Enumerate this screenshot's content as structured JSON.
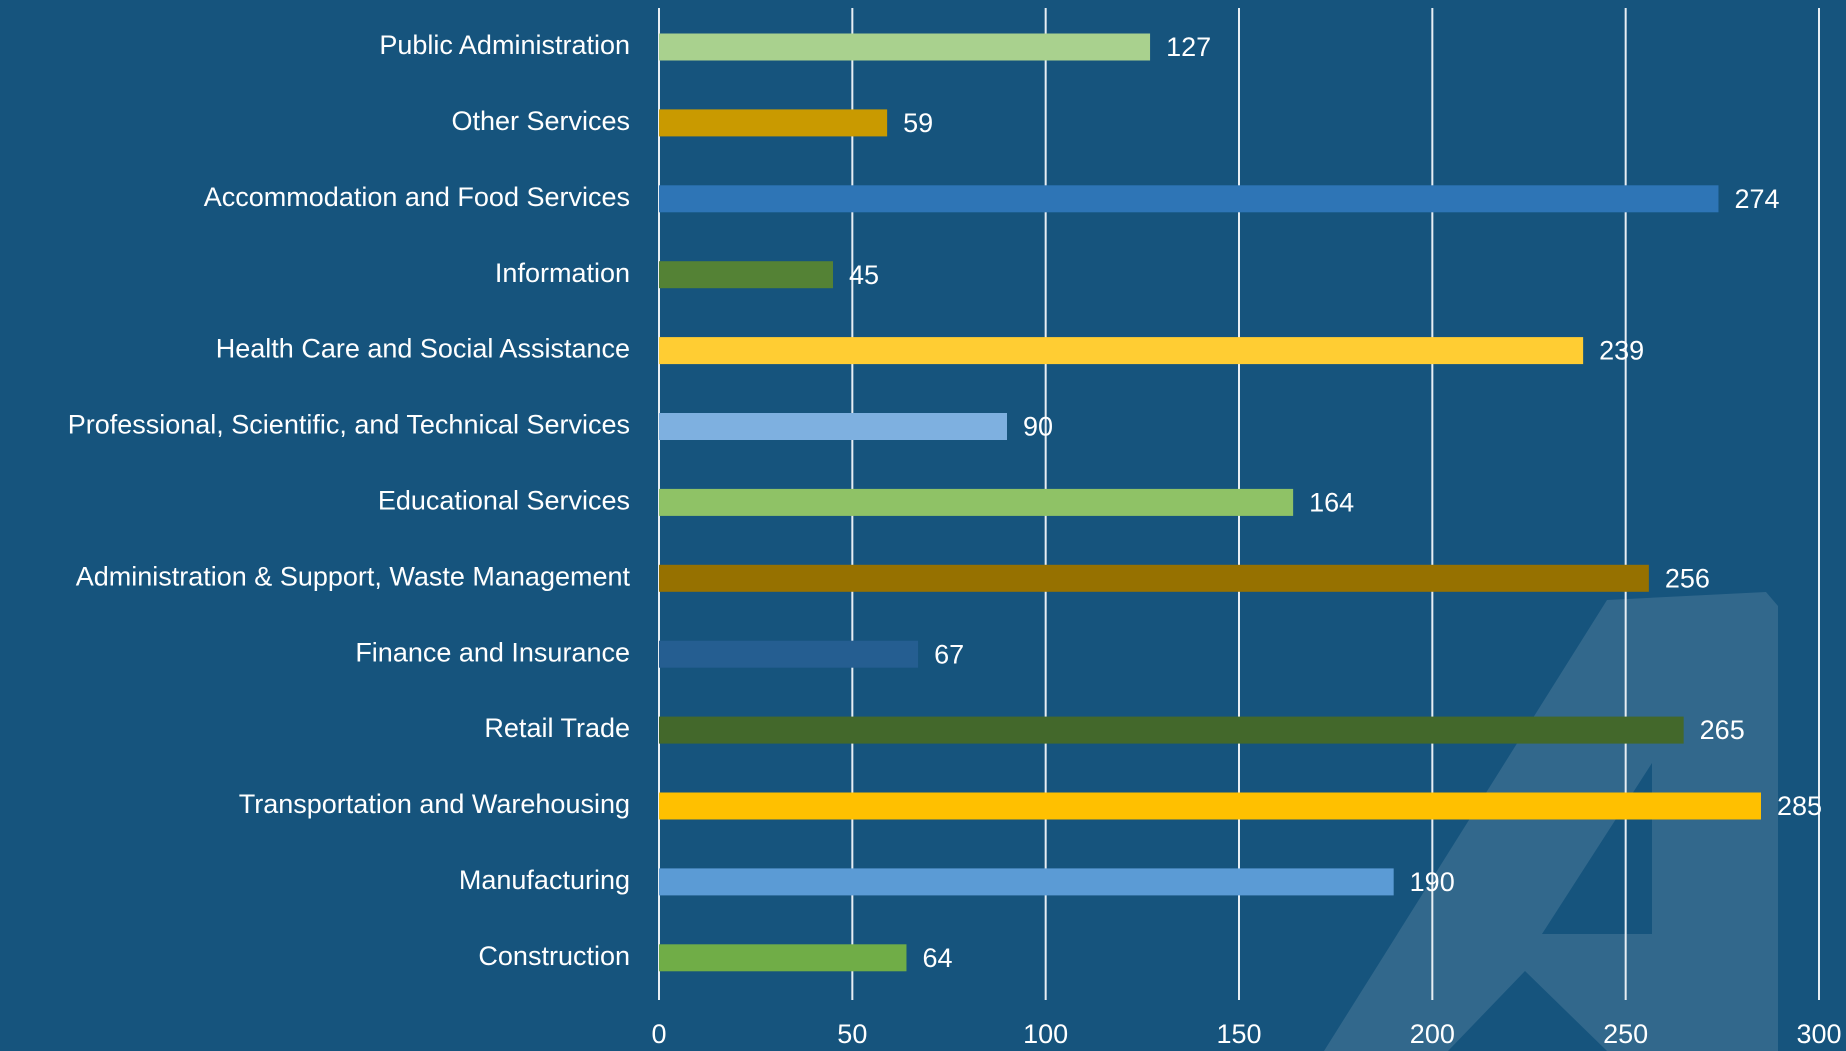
{
  "chart_data": {
    "type": "bar",
    "orientation": "horizontal",
    "categories": [
      "Public Administration",
      "Other Services",
      "Accommodation and Food Services",
      "Information",
      "Health Care and Social Assistance",
      "Professional, Scientific, and Technical Services",
      "Educational Services",
      "Administration & Support, Waste Management",
      "Finance and Insurance",
      "Retail Trade",
      "Transportation and Warehousing",
      "Manufacturing",
      "Construction"
    ],
    "values": [
      127,
      59,
      274,
      45,
      239,
      90,
      164,
      256,
      67,
      265,
      285,
      190,
      64
    ],
    "colors": [
      "#a9d18e",
      "#c99a00",
      "#2e75b6",
      "#548235",
      "#ffcd33",
      "#7eb0e0",
      "#8fc266",
      "#967100",
      "#255e91",
      "#43682b",
      "#ffc000",
      "#5b9bd5",
      "#70ad47"
    ],
    "xlim": [
      0,
      300
    ],
    "xticks": [
      0,
      50,
      100,
      150,
      200,
      250,
      300
    ],
    "grid": true
  }
}
